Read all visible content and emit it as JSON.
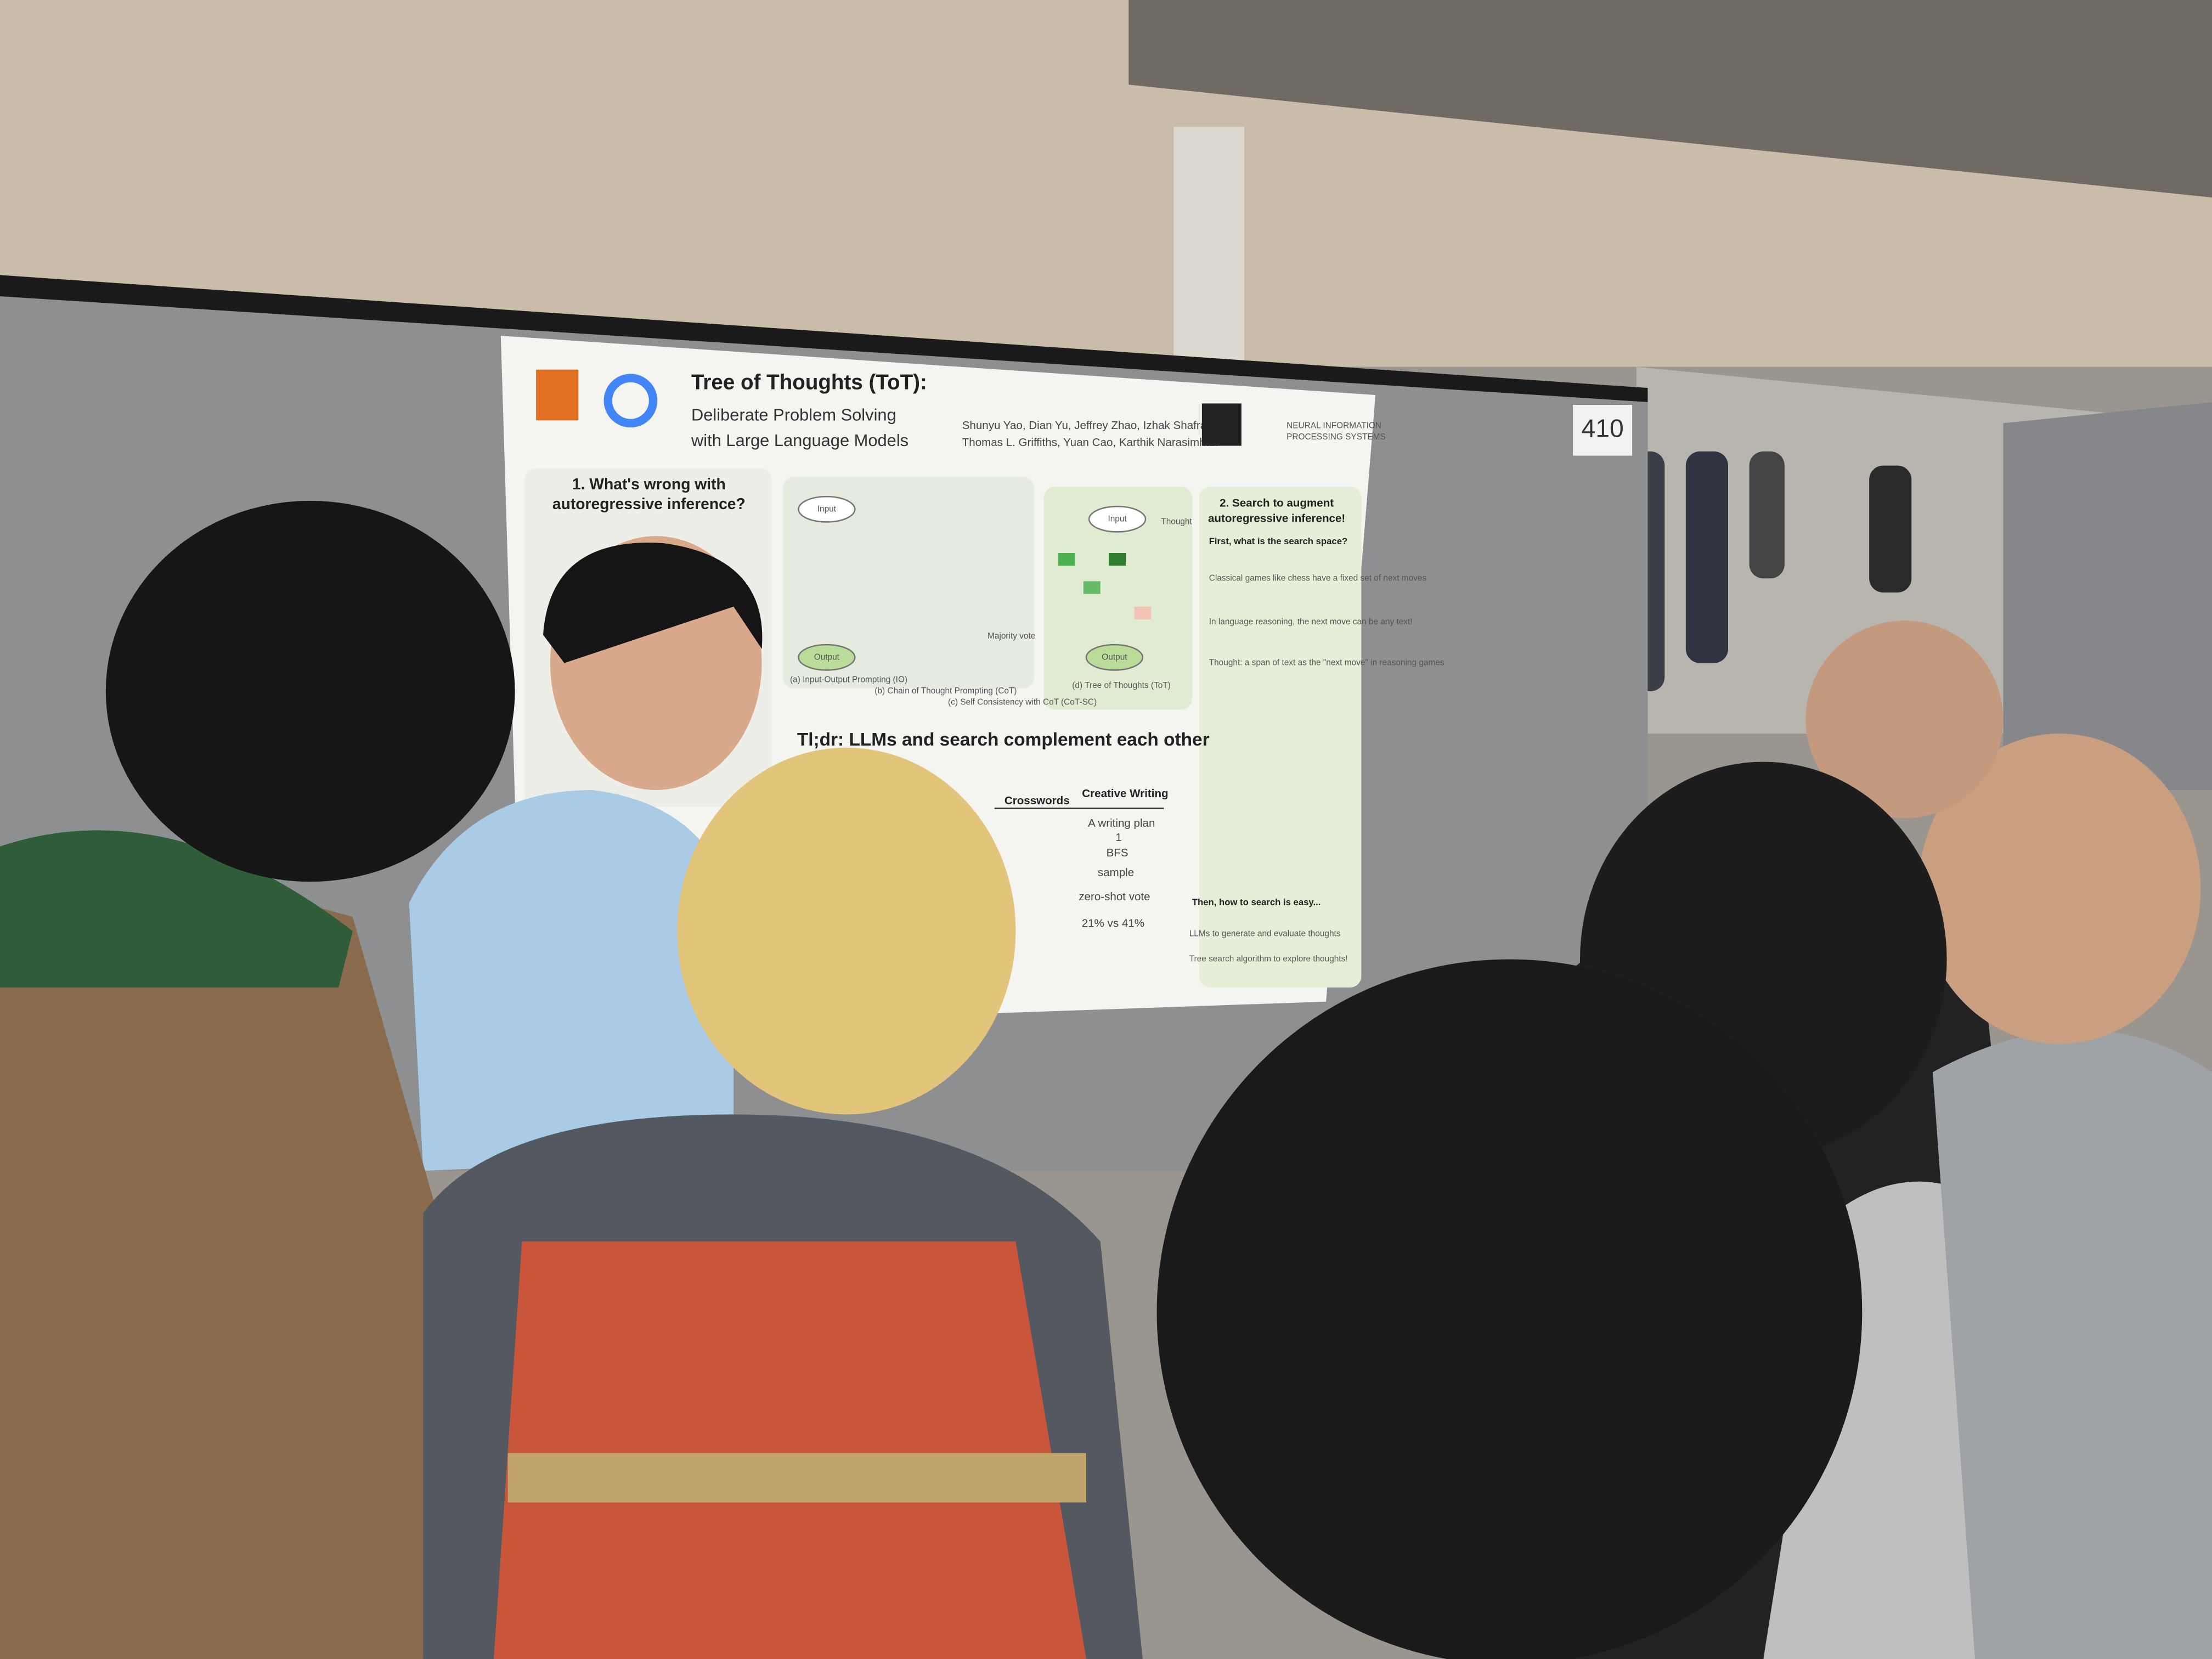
{
  "board_number": "410",
  "poster": {
    "title": "Tree of Thoughts (ToT):",
    "subtitle": [
      "Deliberate Problem Solving",
      "with Large Language Models"
    ],
    "authors": [
      "Shunyu Yao, Dian Yu, Jeffrey Zhao, Izhak Shafran,",
      "Thomas L. Griffiths, Yuan Cao, Karthik Narasimhan"
    ],
    "venue": [
      "NEURAL INFORMATION",
      "PROCESSING SYSTEMS"
    ],
    "section1": {
      "heading": [
        "1. What's wrong with",
        "autoregressive inference?"
      ]
    },
    "diagram": {
      "input": "Input",
      "output": "Output",
      "thought": "Thought",
      "majority": "Majority vote",
      "captions": [
        "(a) Input-Output Prompting (IO)",
        "(b) Chain of Thought Prompting (CoT)",
        "(c) Self Consistency with CoT (CoT-SC)",
        "(d) Tree of Thoughts (ToT)"
      ]
    },
    "section2": {
      "heading": [
        "2. Search to augment",
        "autoregressive inference!"
      ],
      "question": "First, what is the search space?",
      "bullets": [
        "Classical games like chess have a fixed set of next moves",
        "In language reasoning, the next move can be any text!",
        "Thought: a span of text as the \"next move\" in reasoning games"
      ],
      "then": "Then, how to search is easy...",
      "then_bullets": [
        "LLMs to generate and evaluate thoughts",
        "Tree search algorithm to explore thoughts!"
      ]
    },
    "tldr": "Tl;dr: LLMs and search complement each other",
    "table": {
      "headers": [
        "Crosswords",
        "Creative Writing"
      ],
      "writing": [
        "A writing plan",
        "1",
        "BFS",
        "sample",
        "zero-shot vote",
        "21% vs 41%"
      ]
    }
  }
}
